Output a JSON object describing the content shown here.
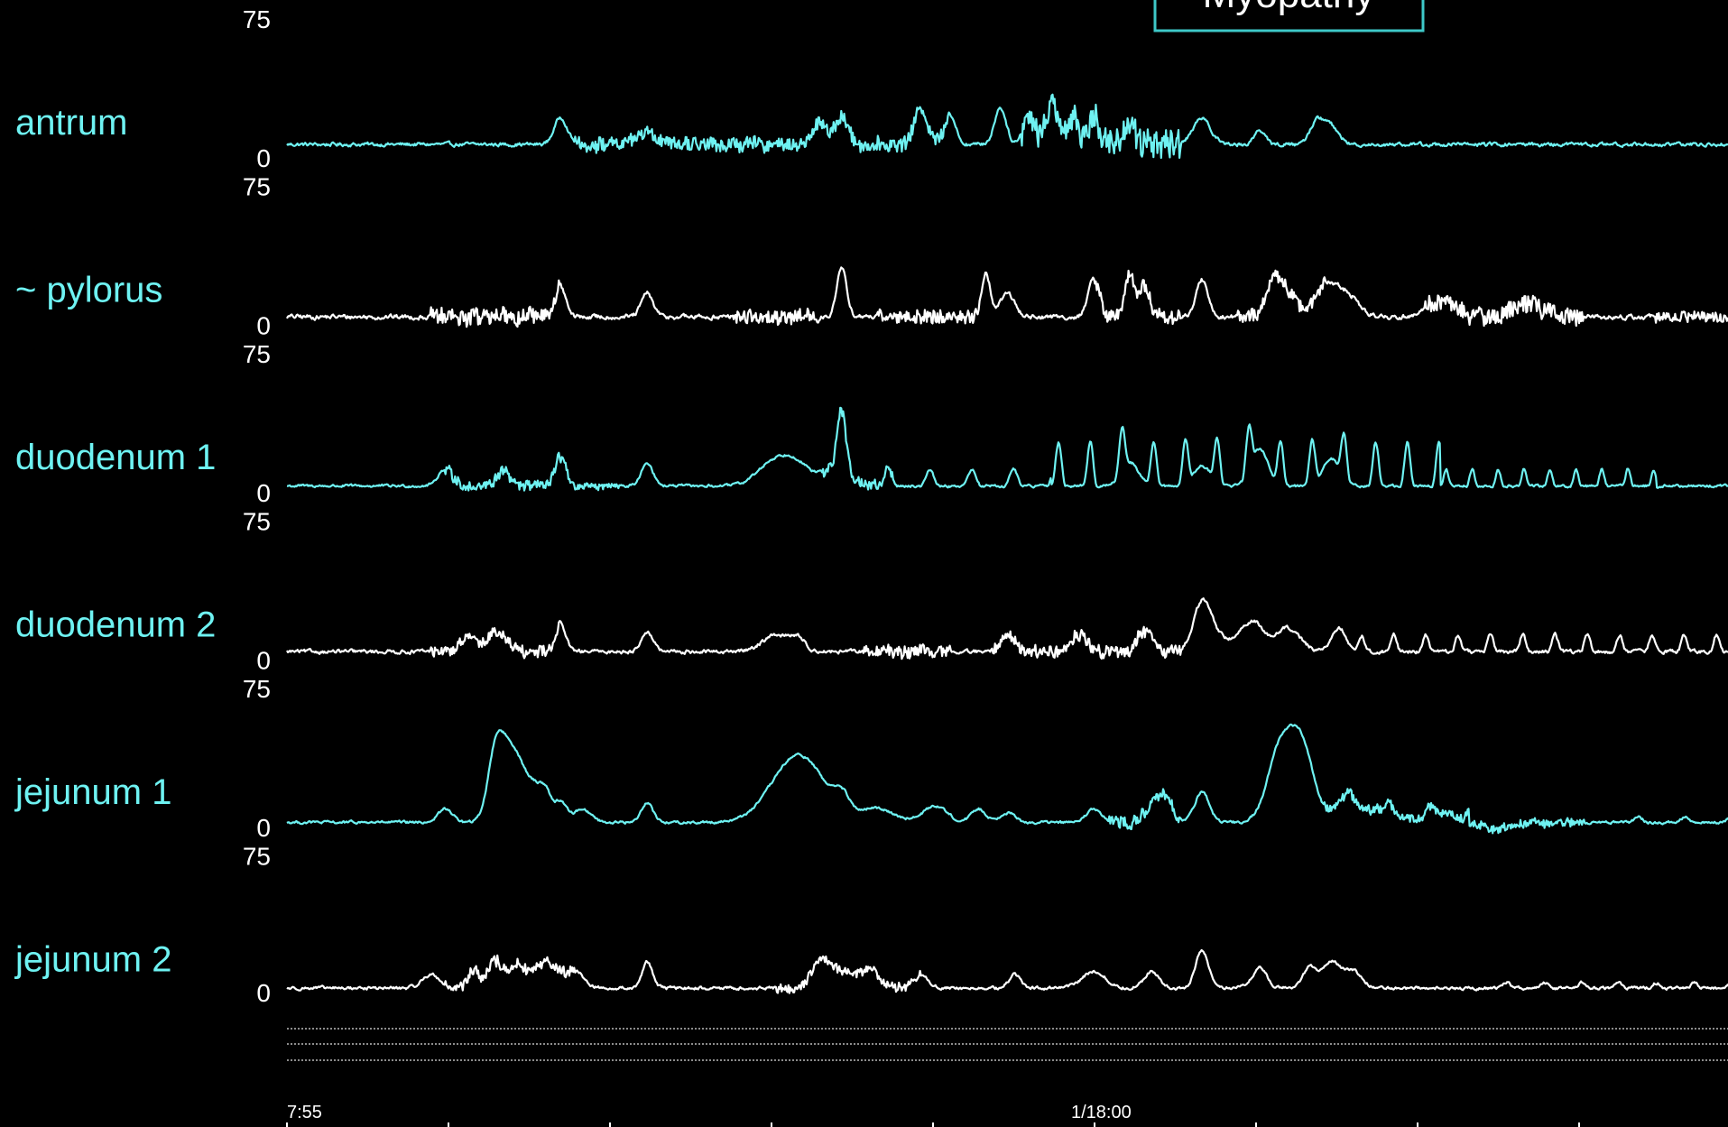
{
  "colors": {
    "background": "#000000",
    "cyan": "#6ef2f2",
    "white": "#ffffff",
    "box_border": "#3ec8c8"
  },
  "header_box": {
    "text": "Myopathy"
  },
  "top_scale_label": "75",
  "chart_data": {
    "type": "line",
    "x_unit": "time",
    "x_ticks": [
      "7:55",
      "1/18:00"
    ],
    "x_range": [
      0,
      100
    ],
    "y_range": [
      0,
      75
    ],
    "series": [
      {
        "name": "antrum",
        "color": "#6ef2f2",
        "ymax_label": "75",
        "ymin_label": "0",
        "baseline": 8,
        "noise": 2.2,
        "bursts": [
          [
            20,
            46,
            4
          ],
          [
            51,
            62,
            9
          ]
        ],
        "peaks": [
          [
            19,
            16,
            0.45
          ],
          [
            25,
            8,
            0.6
          ],
          [
            37,
            14,
            0.45
          ],
          [
            38.5,
            16,
            0.45
          ],
          [
            44,
            22,
            0.45
          ],
          [
            46,
            18,
            0.4
          ],
          [
            49.5,
            22,
            0.4
          ],
          [
            51.5,
            17,
            0.4
          ],
          [
            53,
            24,
            0.4
          ],
          [
            54.5,
            18,
            0.4
          ],
          [
            56,
            20,
            0.35
          ],
          [
            58.5,
            14,
            0.35
          ],
          [
            63.5,
            16,
            0.6
          ],
          [
            67.5,
            9,
            0.35
          ],
          [
            71.5,
            14,
            0.5
          ],
          [
            72.5,
            10,
            0.5
          ]
        ],
        "oscillations": []
      },
      {
        "name": "~ pylorus",
        "color": "#ffffff",
        "ymax_label": "75",
        "ymin_label": "0",
        "baseline": 5,
        "noise": 2.8,
        "bursts": [
          [
            10,
            19,
            5
          ],
          [
            31,
            37,
            4
          ],
          [
            41,
            48,
            4
          ],
          [
            56,
            62,
            4
          ],
          [
            66,
            72,
            3.5
          ],
          [
            79,
            90,
            5
          ],
          [
            95,
            110,
            3
          ]
        ],
        "peaks": [
          [
            19,
            18,
            0.35
          ],
          [
            25,
            14,
            0.4
          ],
          [
            38.5,
            28,
            0.35
          ],
          [
            48.5,
            26,
            0.3
          ],
          [
            50,
            14,
            0.5
          ],
          [
            56,
            22,
            0.4
          ],
          [
            58.5,
            24,
            0.35
          ],
          [
            59.5,
            18,
            0.35
          ],
          [
            63.5,
            22,
            0.4
          ],
          [
            68.5,
            20,
            0.5
          ],
          [
            69.5,
            14,
            0.6
          ],
          [
            72,
            18,
            0.7
          ],
          [
            73.5,
            14,
            0.8
          ],
          [
            80,
            9,
            1
          ],
          [
            86,
            8,
            1
          ]
        ],
        "oscillations": []
      },
      {
        "name": "duodenum 1",
        "color": "#6ef2f2",
        "ymax_label": "75",
        "ymin_label": "0",
        "baseline": 4,
        "noise": 1.6,
        "bursts": [
          [
            11,
            19,
            3
          ],
          [
            19,
            23,
            2
          ],
          [
            37,
            42,
            3
          ]
        ],
        "peaks": [
          [
            11,
            10,
            0.5
          ],
          [
            15,
            9,
            0.4
          ],
          [
            19,
            18,
            0.35
          ],
          [
            25,
            14,
            0.4
          ],
          [
            34,
            16,
            1.2
          ],
          [
            35.5,
            8,
            0.8
          ],
          [
            38,
            10,
            1
          ],
          [
            38.5,
            36,
            0.3
          ],
          [
            58.5,
            14,
            0.6
          ],
          [
            63.5,
            12,
            0.6
          ],
          [
            67.5,
            22,
            0.6
          ],
          [
            72.5,
            16,
            0.6
          ]
        ],
        "oscillations": [
          [
            41,
            53,
            1.45,
            10,
            8
          ],
          [
            53,
            80,
            1.1,
            26,
            8
          ],
          [
            80,
            95,
            0.9,
            10,
            7
          ]
        ]
      },
      {
        "name": "duodenum 2",
        "color": "#ffffff",
        "ymax_label": "75",
        "ymin_label": "0",
        "baseline": 5,
        "noise": 2.2,
        "bursts": [
          [
            10,
            19,
            3
          ],
          [
            40,
            46,
            3.5
          ],
          [
            49,
            62,
            3.5
          ]
        ],
        "peaks": [
          [
            12.5,
            8,
            0.5
          ],
          [
            14.5,
            12,
            0.7
          ],
          [
            19,
            16,
            0.35
          ],
          [
            25,
            12,
            0.4
          ],
          [
            34,
            10,
            1
          ],
          [
            35.5,
            6,
            0.5
          ],
          [
            50,
            10,
            0.5
          ],
          [
            55,
            10,
            0.6
          ],
          [
            59.5,
            12,
            0.5
          ],
          [
            63.5,
            26,
            0.6
          ],
          [
            64.5,
            8,
            1
          ],
          [
            67,
            18,
            0.8
          ],
          [
            69.5,
            14,
            0.8
          ],
          [
            73,
            14,
            0.5
          ]
        ],
        "oscillations": [
          [
            74,
            100,
            1.12,
            10,
            9
          ]
        ]
      },
      {
        "name": "jejunum 1",
        "color": "#6ef2f2",
        "ymax_label": "75",
        "ymin_label": "0",
        "baseline": 3,
        "noise": 1.6,
        "bursts": [
          [
            57,
            62,
            3.5
          ],
          [
            72,
            90,
            2.5
          ]
        ],
        "peaks": [
          [
            11,
            8,
            0.5
          ],
          [
            14.5,
            38,
            0.55
          ],
          [
            15.7,
            42,
            0.8
          ],
          [
            17.3,
            16,
            0.6
          ],
          [
            18,
            12,
            0.4
          ],
          [
            19,
            12,
            0.4
          ],
          [
            20.5,
            8,
            0.6
          ],
          [
            25,
            12,
            0.4
          ],
          [
            35.5,
            40,
            1.8
          ],
          [
            38.5,
            10,
            0.5
          ],
          [
            41,
            8,
            1.2
          ],
          [
            45,
            10,
            0.8
          ],
          [
            48,
            8,
            0.5
          ],
          [
            50,
            6,
            0.5
          ],
          [
            56,
            8,
            0.5
          ],
          [
            60,
            10,
            0.5
          ],
          [
            61,
            14,
            0.5
          ],
          [
            63.5,
            18,
            0.5
          ],
          [
            69,
            45,
            0.9
          ],
          [
            70.5,
            40,
            0.8
          ],
          [
            73.5,
            14,
            0.8
          ],
          [
            76,
            8,
            1
          ],
          [
            80,
            6,
            1
          ],
          [
            84,
            -4,
            1
          ]
        ],
        "oscillations": [
          [
            73,
            82,
            1.4,
            5,
            0
          ],
          [
            93,
            100,
            1.6,
            3,
            0
          ]
        ]
      },
      {
        "name": "jejunum 2",
        "color": "#ffffff",
        "ymax_label": "75",
        "ymin_label": "0",
        "baseline": 4,
        "noise": 1.8,
        "bursts": [
          [
            11,
            20,
            3.5
          ],
          [
            34,
            44,
            2.5
          ]
        ],
        "peaks": [
          [
            10,
            8,
            0.6
          ],
          [
            13,
            10,
            0.4
          ],
          [
            14.5,
            16,
            0.5
          ],
          [
            16,
            14,
            0.5
          ],
          [
            18,
            16,
            0.8
          ],
          [
            20,
            10,
            0.6
          ],
          [
            25,
            16,
            0.35
          ],
          [
            37,
            14,
            0.6
          ],
          [
            38.5,
            10,
            1
          ],
          [
            40.5,
            10,
            0.6
          ],
          [
            44,
            8,
            0.5
          ],
          [
            50.5,
            8,
            0.4
          ],
          [
            56,
            10,
            0.8
          ],
          [
            60,
            10,
            0.5
          ],
          [
            63.5,
            22,
            0.45
          ],
          [
            67.5,
            12,
            0.5
          ],
          [
            71,
            12,
            0.5
          ],
          [
            72.5,
            16,
            0.6
          ],
          [
            74,
            10,
            0.6
          ]
        ],
        "oscillations": [
          [
            84,
            100,
            1.3,
            3,
            0
          ]
        ]
      }
    ]
  }
}
